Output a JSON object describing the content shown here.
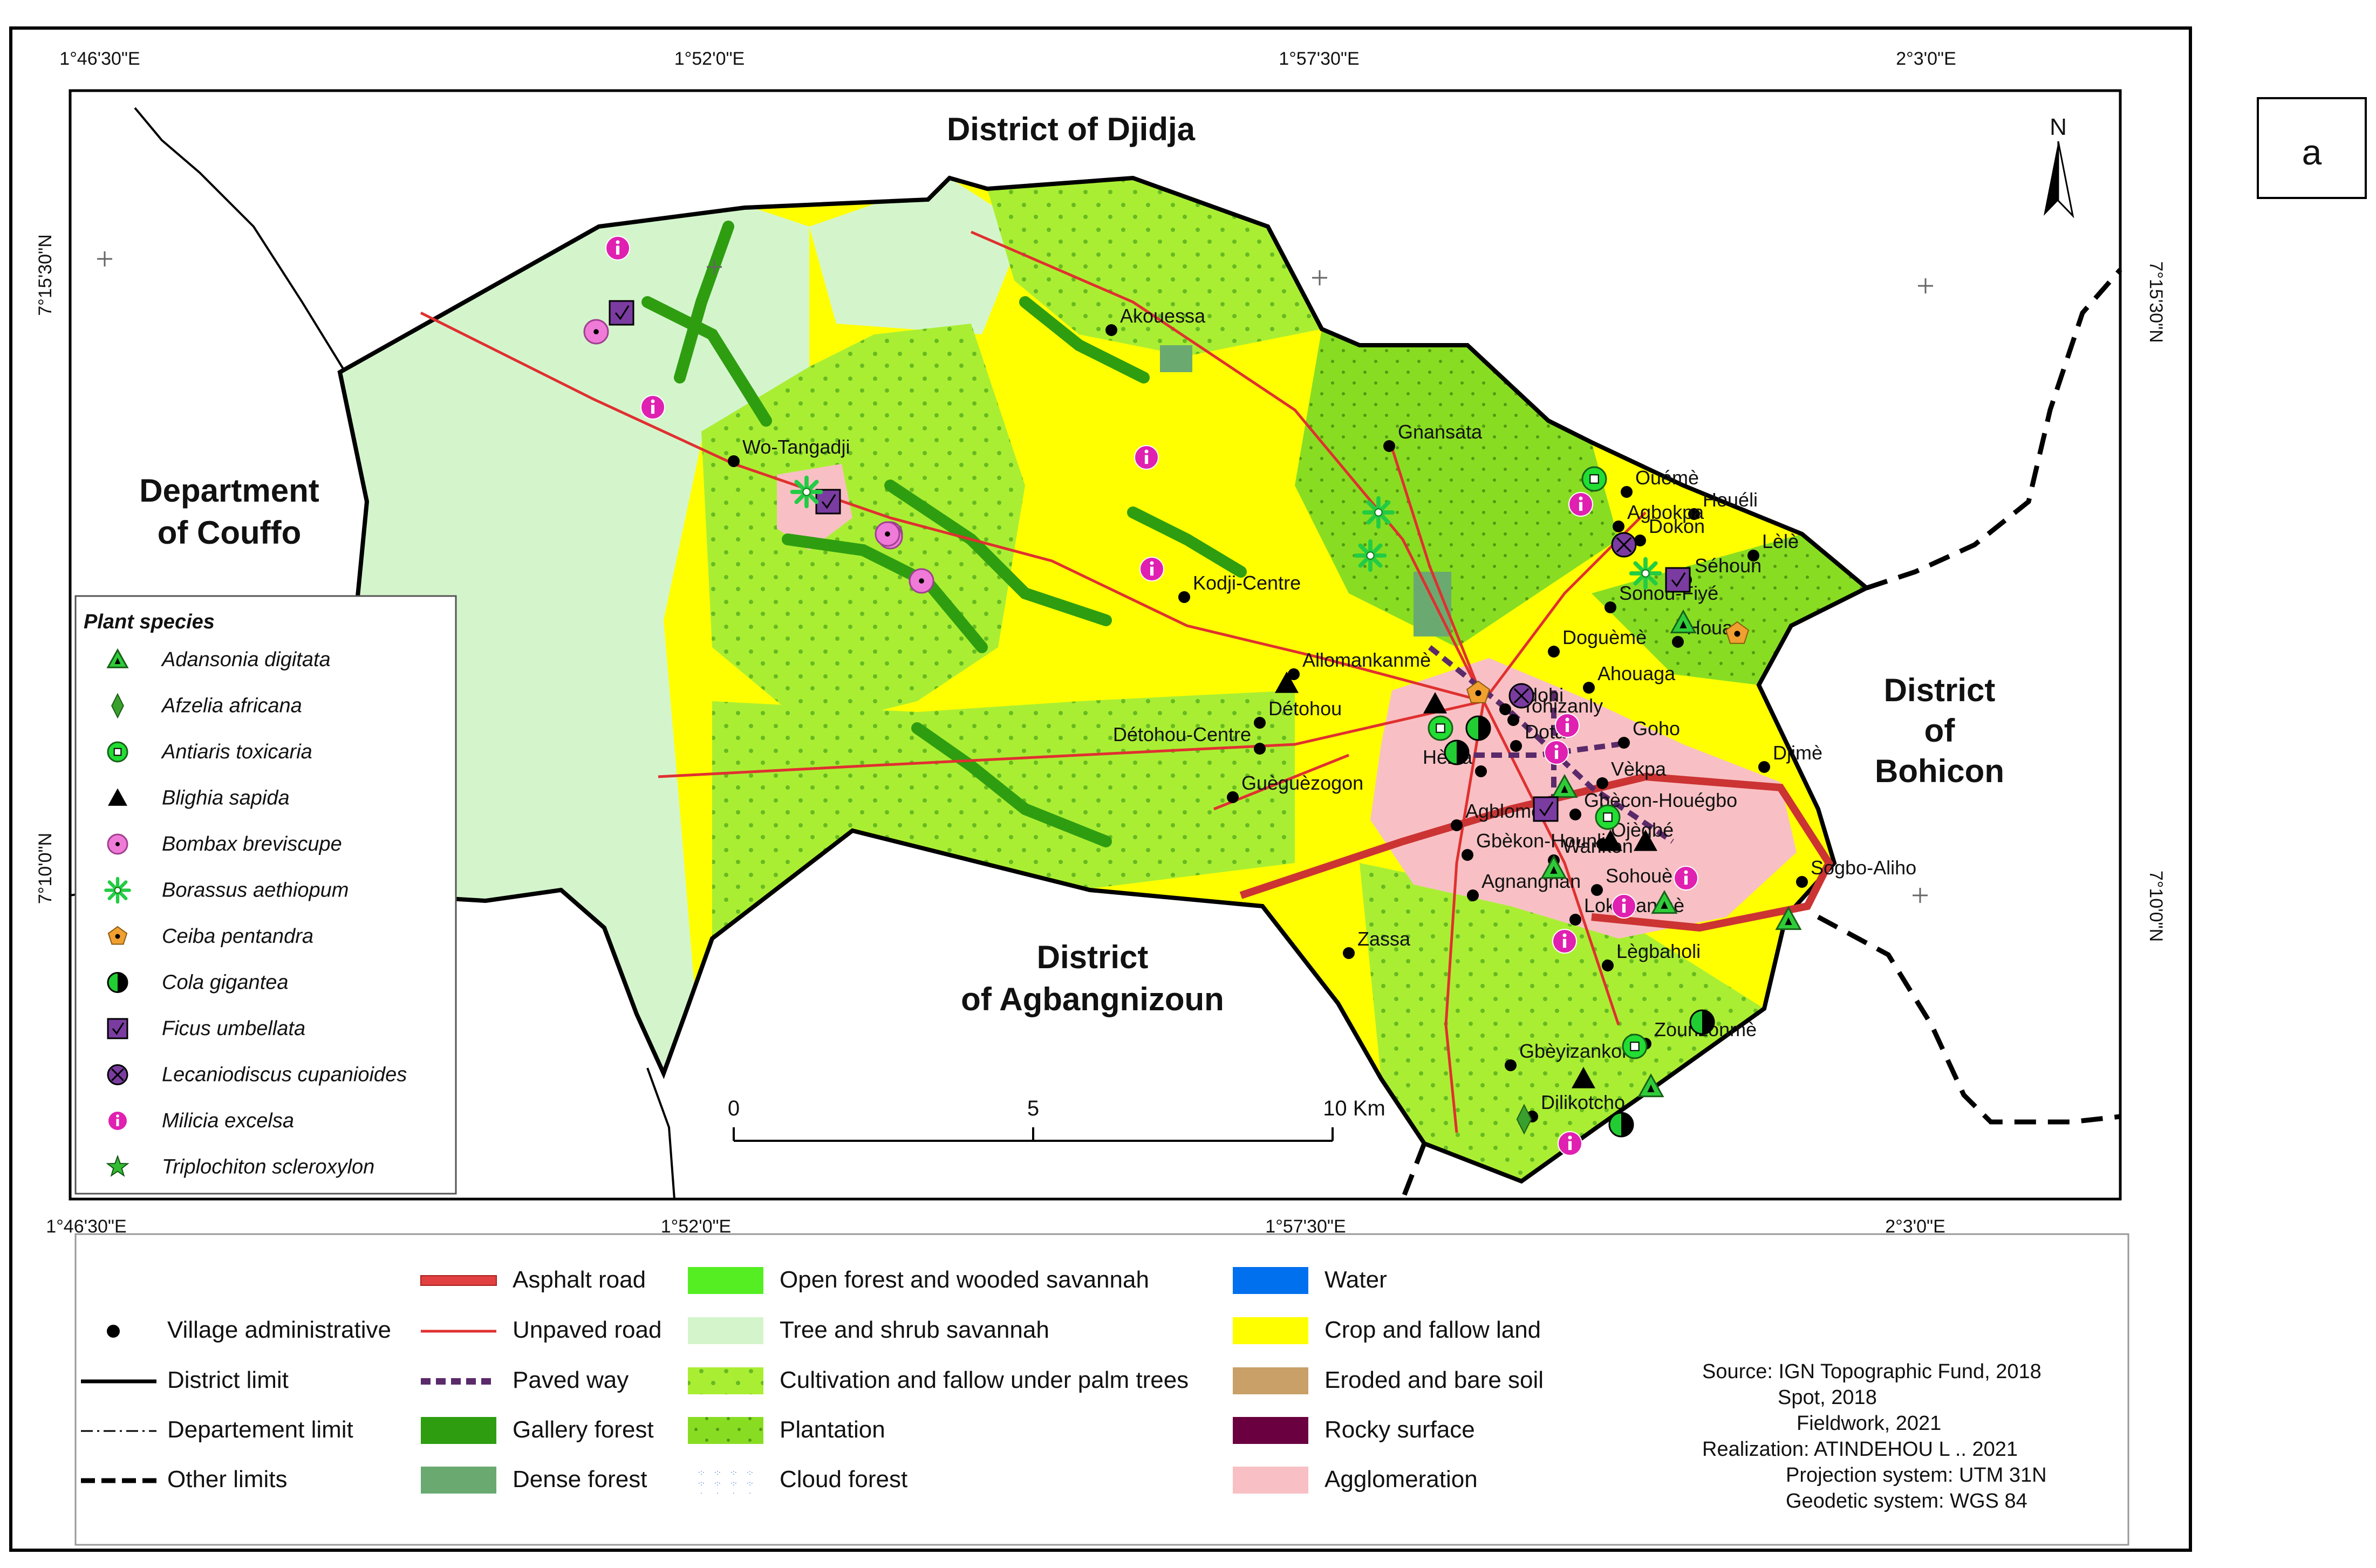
{
  "panel_label": "a",
  "north": "N",
  "coords": {
    "top_lon": [
      "1°46'30\"E",
      "1°52'0\"E",
      "1°57'30\"E",
      "2°3'0\"E"
    ],
    "bottom_lon": [
      "1°46'30\"E",
      "1°52'0\"E",
      "1°57'30\"E",
      "2°3'0\"E"
    ],
    "left_lat": [
      "7°15'30\"N",
      "7°10'0\"N"
    ],
    "right_lat": [
      "7°15'30\"N",
      "7°10'0\"N"
    ]
  },
  "regions": {
    "djidja": "District of Djidja",
    "couffo_1": "Department",
    "couffo_2": "of Couffo",
    "agbangnizoun_1": "District",
    "agbangnizoun_2": "of Agbangnizoun",
    "bohicon_1": "District",
    "bohicon_2": "of",
    "bohicon_3": "Bohicon"
  },
  "villages": [
    "Akouessa",
    "Wo-Tangadji",
    "Gnansata",
    "Kodji-Centre",
    "Allomankanmè",
    "Détohou",
    "Détohou-Centre",
    "Guèguèzogon",
    "Ouémè",
    "Houéli",
    "Agbokpa",
    "Dokon",
    "Lèlè",
    "Séhoun",
    "Sonou-Fiyé",
    "Houao",
    "Doguèmè",
    "Ahouaga",
    "Tohizanly",
    "Goho",
    "Djimè",
    "Vèkpa",
    "Gbècon-Houégbo",
    "Hèzia",
    "Adohi",
    "Dota",
    "Agblomè",
    "Gbèkon-Hounli",
    "Wankon",
    "Ojègbé",
    "Sohouè",
    "Sogbo-Aliho",
    "Agnangnan",
    "Lokokanmè",
    "Zassa",
    "Lègbaholi",
    "Zounzonmè",
    "Gbèyizankon",
    "Dilikotcho"
  ],
  "plant_legend": {
    "title": "Plant species",
    "items": [
      {
        "name": "Adansonia digitata",
        "symbol": "triangle-green",
        "color": "#2fcc3a"
      },
      {
        "name": "Afzelia africana",
        "symbol": "diamond-green",
        "color": "#3aa02d"
      },
      {
        "name": "Antiaris toxicaria",
        "symbol": "circle-square-green",
        "color": "#22dd33"
      },
      {
        "name": "Blighia sapida",
        "symbol": "triangle-black",
        "color": "#000000"
      },
      {
        "name": "Bombax breviscupe",
        "symbol": "circle-star-pink",
        "color": "#f07ad8"
      },
      {
        "name": "Borassus aethiopum",
        "symbol": "asterisk-green",
        "color": "#22cc44"
      },
      {
        "name": "Ceiba pentandra",
        "symbol": "pentagon-orange",
        "color": "#f0a030"
      },
      {
        "name": "Cola gigantea",
        "symbol": "half-circle-green",
        "color": "#22cc33"
      },
      {
        "name": "Ficus umbellata",
        "symbol": "square-purple",
        "color": "#7a3ca0"
      },
      {
        "name": "Lecaniodiscus cupanioides",
        "symbol": "circle-x-purple",
        "color": "#7a3ca0"
      },
      {
        "name": "Milicia excelsa",
        "symbol": "info-magenta",
        "color": "#e020b0"
      },
      {
        "name": "Triplochiton scleroxylon",
        "symbol": "star-green",
        "color": "#33bb33"
      }
    ]
  },
  "scale_bar": {
    "labels": [
      "0",
      "5",
      "10 Km"
    ]
  },
  "bottom_legend": {
    "col1": [
      {
        "label": "Village administrative",
        "symbol": "dot"
      },
      {
        "label": "District      limit",
        "symbol": "solid-line"
      },
      {
        "label": "Departement    limit",
        "symbol": "dash-dot-line"
      },
      {
        "label": "Other limits",
        "symbol": "dashed-line"
      }
    ],
    "col2": [
      {
        "label": "Asphalt road",
        "symbol": "asphalt",
        "color": "#e04040"
      },
      {
        "label": "Unpaved road",
        "symbol": "unpaved",
        "color": "#e03030"
      },
      {
        "label": "Paved way",
        "symbol": "paved",
        "color": "#e070c0"
      },
      {
        "label": "Gallery forest",
        "symbol": "fill",
        "color": "#2e9e10"
      },
      {
        "label": "Dense forest",
        "symbol": "fill",
        "color": "#6aaa70"
      }
    ],
    "col3": [
      {
        "label": "Open forest and wooded savannah",
        "symbol": "fill",
        "color": "#55ee22"
      },
      {
        "label": "Tree and shrub savannah",
        "symbol": "fill",
        "color": "#d4f5cc"
      },
      {
        "label": "Cultivation and fallow under palm trees",
        "symbol": "dotfill",
        "color": "#aaee33"
      },
      {
        "label": "Plantation",
        "symbol": "dotfill",
        "color": "#88dd22"
      },
      {
        "label": "Cloud forest",
        "symbol": "cloud",
        "color": "#ffffff"
      }
    ],
    "col4": [
      {
        "label": "Water",
        "symbol": "fill",
        "color": "#0070ee"
      },
      {
        "label": "Crop and fallow land",
        "symbol": "fill",
        "color": "#ffff00"
      },
      {
        "label": "Eroded and bare soil",
        "symbol": "fill",
        "color": "#c8a068"
      },
      {
        "label": "Rocky surface",
        "symbol": "fill",
        "color": "#6a0040"
      },
      {
        "label": "Agglomeration",
        "symbol": "fill",
        "color": "#f8c0c4"
      }
    ]
  },
  "source": {
    "lines": [
      "Source: IGN Topographic Fund, 2018",
      "Spot, 2018",
      "Fieldwork, 2021",
      "Realization: ATINDEHOU L .. 2021",
      "Projection system: UTM 31N",
      "Geodetic system: WGS 84"
    ]
  }
}
